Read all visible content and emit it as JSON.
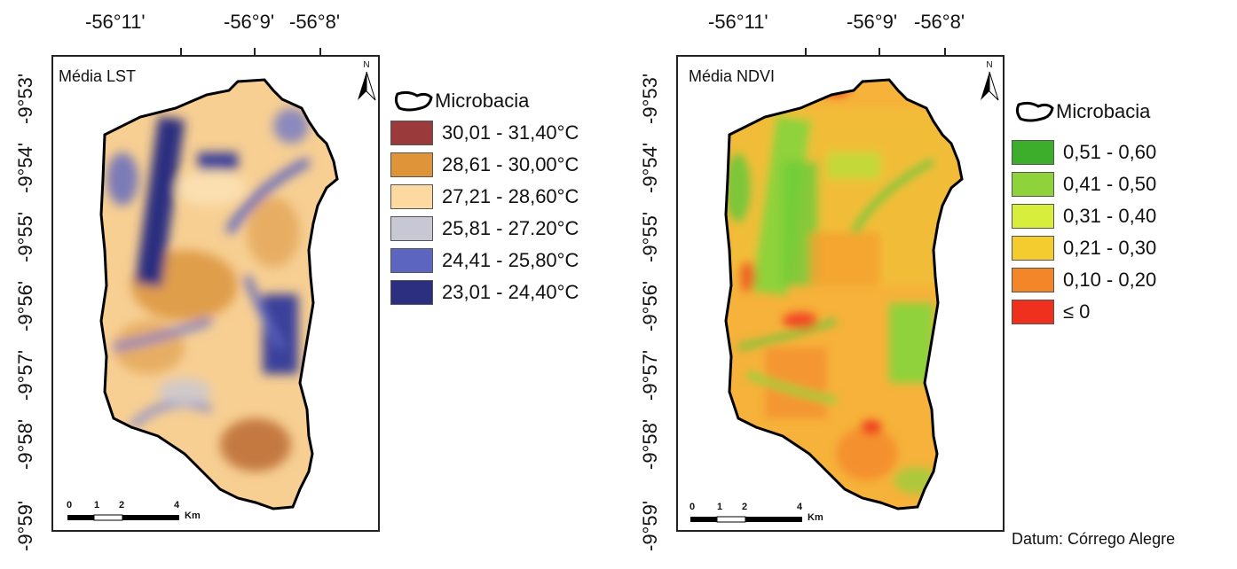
{
  "left_map": {
    "title": "Média LST",
    "lon_labels": [
      "-56°11'",
      "-56°9'",
      "-56°8'"
    ],
    "lat_labels": [
      "-9°53'",
      "-9°54'",
      "-9°55'",
      "-9°56'",
      "-9°57'",
      "-9°58'",
      "-9°59'"
    ],
    "north": "N",
    "scale": [
      "0",
      "1",
      "2",
      "4",
      "Km"
    ],
    "legend_title": "Microbacia",
    "legend": [
      {
        "label": "30,01 - 31,40°C",
        "color": "#9b3a3a"
      },
      {
        "label": "28,61 - 30,00°C",
        "color": "#e0943a"
      },
      {
        "label": "27,21 - 28,60°C",
        "color": "#fcd9a0"
      },
      {
        "label": "25,81 - 27.20°C",
        "color": "#c8c8d4"
      },
      {
        "label": "24,41 - 25,80°C",
        "color": "#5c65c0"
      },
      {
        "label": "23,01 - 24,40°C",
        "color": "#2c2f80"
      }
    ]
  },
  "right_map": {
    "title": "Média NDVI",
    "lon_labels": [
      "-56°11'",
      "-56°9'",
      "-56°8'"
    ],
    "lat_labels": [
      "-9°53'",
      "-9°54'",
      "-9°55'",
      "-9°56'",
      "-9°57'",
      "-9°58'",
      "-9°59'"
    ],
    "north": "N",
    "scale": [
      "0",
      "1",
      "2",
      "4",
      "Km"
    ],
    "legend_title": "Microbacia",
    "legend": [
      {
        "label": "0,51 - 0,60",
        "color": "#3cae2c"
      },
      {
        "label": "0,41 - 0,50",
        "color": "#8fd23a"
      },
      {
        "label": "0,31 - 0,40",
        "color": "#d8ee3c"
      },
      {
        "label": "0,21 - 0,30",
        "color": "#f4cc30"
      },
      {
        "label": "0,10 - 0,20",
        "color": "#f4862a"
      },
      {
        "label": "≤  0",
        "color": "#f0301e"
      }
    ]
  },
  "datum": "Datum: Córrego Alegre"
}
